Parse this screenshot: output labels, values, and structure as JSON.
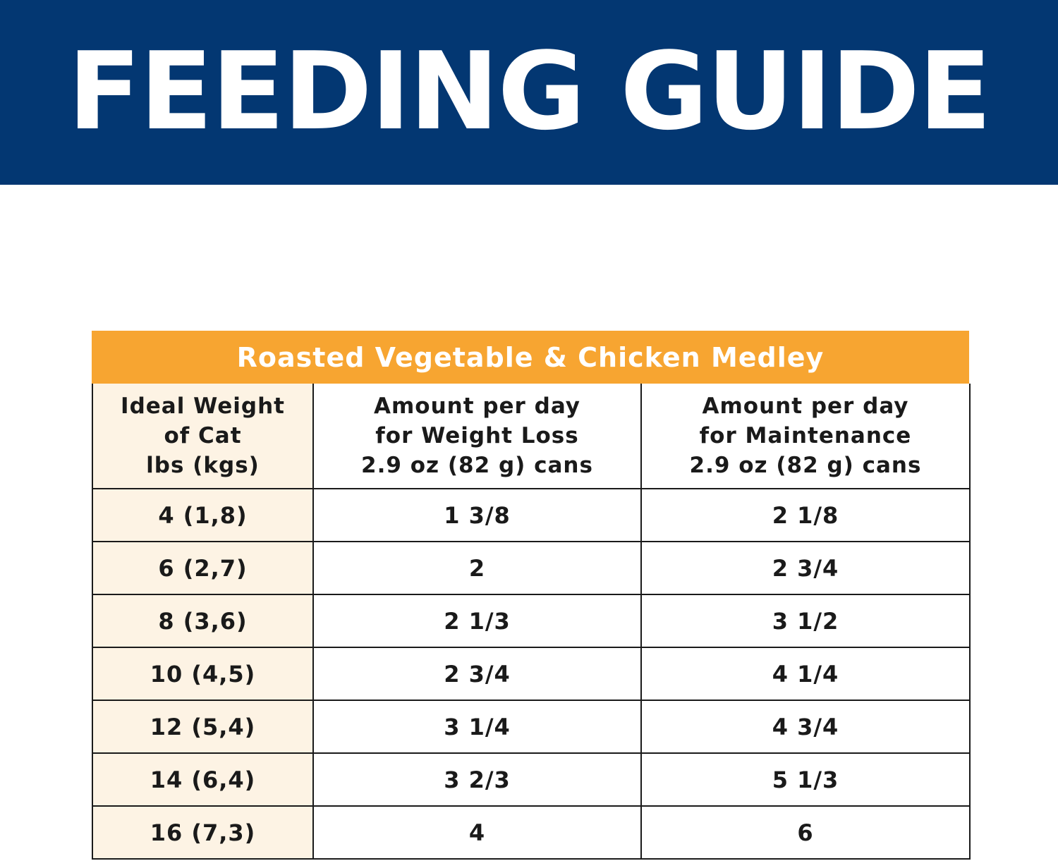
{
  "banner": {
    "title": "FEEDING GUIDE"
  },
  "table": {
    "title": "Roasted Vegetable & Chicken Medley",
    "columns": [
      {
        "lines": [
          "Ideal Weight",
          "of Cat",
          "lbs (kgs)"
        ]
      },
      {
        "lines": [
          "Amount per day",
          "for Weight Loss",
          "2.9 oz (82 g) cans"
        ]
      },
      {
        "lines": [
          "Amount per day",
          "for Maintenance",
          "2.9 oz (82 g) cans"
        ]
      }
    ],
    "rows": [
      [
        "4 (1,8)",
        "1 3/8",
        "2 1/8"
      ],
      [
        "6 (2,7)",
        "2",
        "2 3/4"
      ],
      [
        "8 (3,6)",
        "2 1/3",
        "3 1/2"
      ],
      [
        "10 (4,5)",
        "2 3/4",
        "4 1/4"
      ],
      [
        "12 (5,4)",
        "3 1/4",
        "4 3/4"
      ],
      [
        "14 (6,4)",
        "3 2/3",
        "5 1/3"
      ],
      [
        "16 (7,3)",
        "4",
        "6"
      ]
    ]
  },
  "colors": {
    "banner_bg": "#033772",
    "header_bg": "#f7a531",
    "weight_col_bg": "#fdf3e4"
  }
}
